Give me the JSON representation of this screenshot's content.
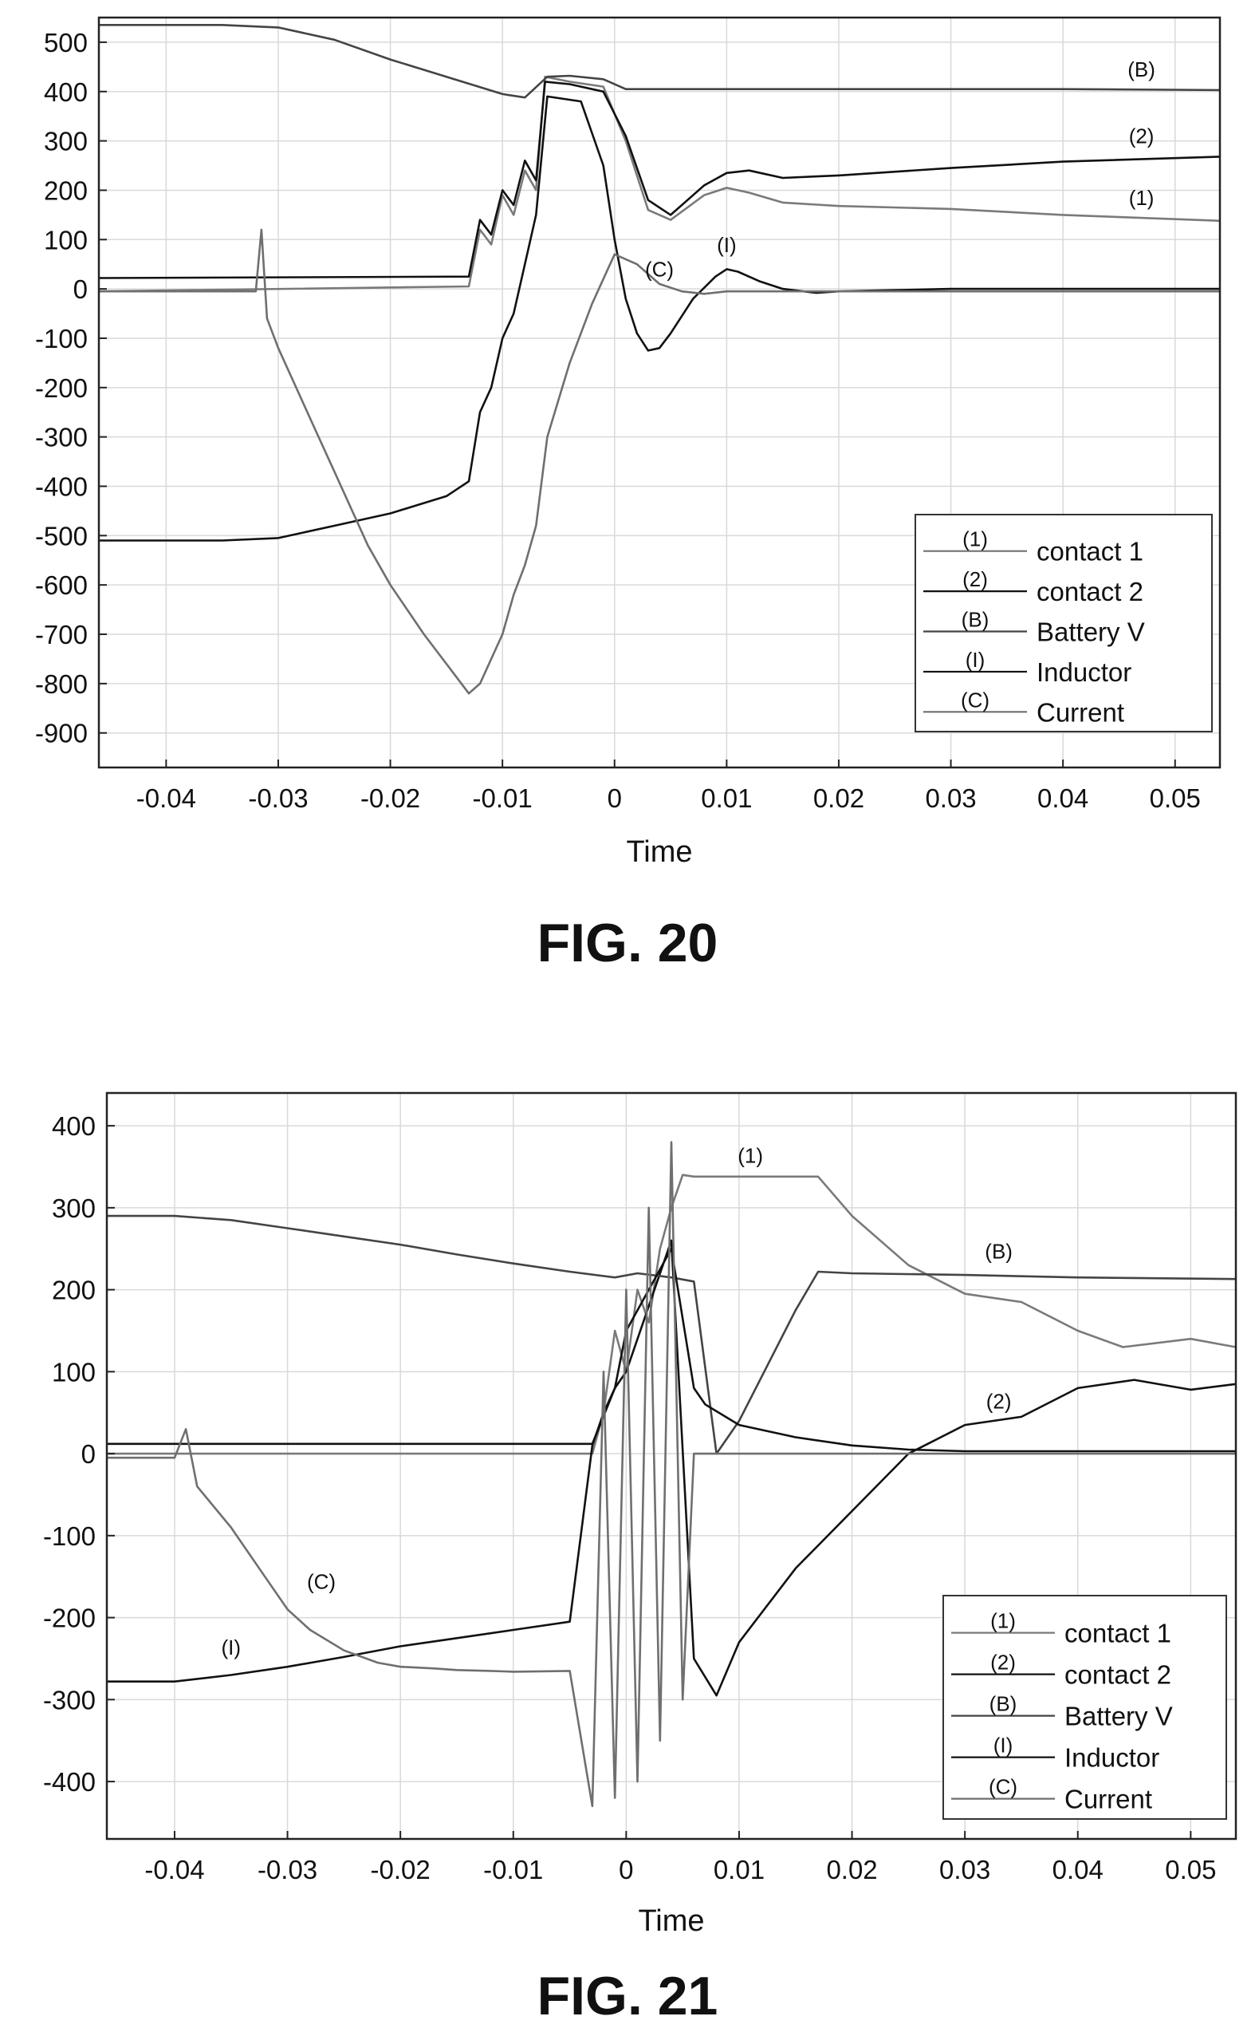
{
  "chart_data": [
    {
      "type": "line",
      "figure_label": "FIG. 20",
      "xlabel": "Time",
      "ylabel": "",
      "xlim": [
        -0.046,
        0.054
      ],
      "ylim": [
        -970,
        550
      ],
      "xticks": [
        -0.04,
        -0.03,
        -0.02,
        -0.01,
        0,
        0.01,
        0.02,
        0.03,
        0.04,
        0.05
      ],
      "xtick_labels": [
        "-0.04",
        "-0.03",
        "-0.02",
        "-0.01",
        "0",
        "0.01",
        "0.02",
        "0.03",
        "0.04",
        "0.05"
      ],
      "yticks": [
        500,
        400,
        300,
        200,
        100,
        0,
        -100,
        -200,
        -300,
        -400,
        -500,
        -600,
        -700,
        -800,
        -900
      ],
      "ytick_labels": [
        "500",
        "400",
        "300",
        "200",
        "100",
        "0",
        "-100",
        "-200",
        "-300",
        "-400",
        "-500",
        "-600",
        "-700",
        "-800",
        "-900"
      ],
      "grid": true,
      "legend_position": "bottom-right",
      "series": [
        {
          "code": "(1)",
          "name": "contact  1",
          "color": "#7a7a7a",
          "x": [
            -0.046,
            -0.013,
            -0.012,
            -0.011,
            -0.01,
            -0.009,
            -0.008,
            -0.007,
            -0.0062,
            -0.004,
            -0.001,
            0.001,
            0.003,
            0.005,
            0.008,
            0.01,
            0.012,
            0.015,
            0.02,
            0.03,
            0.04,
            0.054
          ],
          "y": [
            -5,
            5,
            120,
            90,
            190,
            150,
            240,
            200,
            430,
            420,
            410,
            300,
            160,
            140,
            190,
            205,
            195,
            175,
            168,
            162,
            150,
            138
          ]
        },
        {
          "code": "(2)",
          "name": "contact  2",
          "color": "#111111",
          "x": [
            -0.046,
            -0.013,
            -0.012,
            -0.011,
            -0.01,
            -0.009,
            -0.008,
            -0.007,
            -0.0062,
            -0.004,
            -0.001,
            0.001,
            0.003,
            0.005,
            0.008,
            0.01,
            0.012,
            0.015,
            0.02,
            0.03,
            0.04,
            0.054
          ],
          "y": [
            22,
            25,
            140,
            110,
            200,
            170,
            260,
            220,
            420,
            415,
            400,
            310,
            180,
            150,
            210,
            235,
            240,
            225,
            230,
            245,
            258,
            268
          ]
        },
        {
          "code": "(B)",
          "name": "Battery  V",
          "color": "#444444",
          "x": [
            -0.046,
            -0.035,
            -0.03,
            -0.025,
            -0.02,
            -0.015,
            -0.01,
            -0.008,
            -0.006,
            -0.004,
            -0.001,
            0.001,
            0.005,
            0.01,
            0.02,
            0.03,
            0.04,
            0.054
          ],
          "y": [
            535,
            535,
            530,
            505,
            465,
            430,
            395,
            388,
            430,
            432,
            425,
            405,
            405,
            405,
            405,
            405,
            405,
            403
          ]
        },
        {
          "code": "(I)",
          "name": "Inductor",
          "color": "#111111",
          "x": [
            -0.046,
            -0.035,
            -0.03,
            -0.025,
            -0.02,
            -0.015,
            -0.013,
            -0.012,
            -0.011,
            -0.01,
            -0.009,
            -0.008,
            -0.007,
            -0.006,
            -0.003,
            -0.001,
            0.0,
            0.001,
            0.002,
            0.003,
            0.004,
            0.005,
            0.007,
            0.009,
            0.01,
            0.011,
            0.013,
            0.015,
            0.018,
            0.02,
            0.03,
            0.04,
            0.054
          ],
          "y": [
            -510,
            -510,
            -505,
            -480,
            -455,
            -420,
            -390,
            -250,
            -200,
            -100,
            -50,
            50,
            150,
            390,
            380,
            250,
            100,
            -20,
            -90,
            -125,
            -120,
            -90,
            -20,
            25,
            40,
            35,
            15,
            0,
            -8,
            -5,
            0,
            0,
            0
          ]
        },
        {
          "code": "(C)",
          "name": "Current",
          "color": "#6f6f6f",
          "x": [
            -0.046,
            -0.032,
            -0.0315,
            -0.031,
            -0.03,
            -0.027,
            -0.025,
            -0.022,
            -0.02,
            -0.017,
            -0.015,
            -0.013,
            -0.012,
            -0.011,
            -0.01,
            -0.009,
            -0.008,
            -0.007,
            -0.006,
            -0.004,
            -0.002,
            0.0,
            0.002,
            0.004,
            0.006,
            0.008,
            0.01,
            0.015,
            0.02,
            0.03,
            0.054
          ],
          "y": [
            -5,
            -5,
            120,
            -60,
            -120,
            -270,
            -370,
            -520,
            -600,
            -700,
            -760,
            -820,
            -800,
            -750,
            -700,
            -620,
            -560,
            -480,
            -300,
            -150,
            -30,
            70,
            50,
            10,
            -5,
            -10,
            -5,
            -5,
            -5,
            -5,
            -5
          ]
        }
      ],
      "annotations": [
        {
          "label": "(B)",
          "x": 0.047,
          "y": 430
        },
        {
          "label": "(2)",
          "x": 0.047,
          "y": 295
        },
        {
          "label": "(1)",
          "x": 0.047,
          "y": 170
        },
        {
          "label": "(C)",
          "x": 0.004,
          "y": 25
        },
        {
          "label": "(I)",
          "x": 0.01,
          "y": 75
        }
      ]
    },
    {
      "type": "line",
      "figure_label": "FIG. 21",
      "xlabel": "Time",
      "ylabel": "",
      "xlim": [
        -0.046,
        0.054
      ],
      "ylim": [
        -470,
        440
      ],
      "xticks": [
        -0.04,
        -0.03,
        -0.02,
        -0.01,
        0,
        0.01,
        0.02,
        0.03,
        0.04,
        0.05
      ],
      "xtick_labels": [
        "-0.04",
        "-0.03",
        "-0.02",
        "-0.01",
        "0",
        "0.01",
        "0.02",
        "0.03",
        "0.04",
        "0.05"
      ],
      "yticks": [
        400,
        300,
        200,
        100,
        0,
        -100,
        -200,
        -300,
        -400
      ],
      "ytick_labels": [
        "400",
        "300",
        "200",
        "100",
        "0",
        "-100",
        "-200",
        "-300",
        "-400"
      ],
      "grid": true,
      "legend_position": "bottom-right",
      "series": [
        {
          "code": "(1)",
          "name": "contact  1",
          "color": "#7a7a7a",
          "x": [
            -0.046,
            -0.003,
            -0.002,
            -0.001,
            0.0,
            0.001,
            0.002,
            0.003,
            0.004,
            0.005,
            0.006,
            0.01,
            0.015,
            0.017,
            0.02,
            0.025,
            0.03,
            0.035,
            0.04,
            0.044,
            0.05,
            0.054
          ],
          "y": [
            0,
            0,
            50,
            150,
            100,
            200,
            160,
            250,
            300,
            340,
            338,
            338,
            338,
            338,
            290,
            230,
            195,
            185,
            150,
            130,
            140,
            130
          ]
        },
        {
          "code": "(2)",
          "name": "contact  2",
          "color": "#111111",
          "x": [
            -0.046,
            -0.003,
            -0.001,
            0.0,
            0.002,
            0.004,
            0.006,
            0.008,
            0.01,
            0.015,
            0.02,
            0.025,
            0.03,
            0.035,
            0.04,
            0.045,
            0.05,
            0.054
          ],
          "y": [
            12,
            12,
            80,
            100,
            180,
            260,
            -250,
            -295,
            -230,
            -140,
            -70,
            0,
            35,
            45,
            80,
            90,
            78,
            85
          ]
        },
        {
          "code": "(B)",
          "name": "Battery  V",
          "color": "#444444",
          "x": [
            -0.046,
            -0.04,
            -0.035,
            -0.03,
            -0.025,
            -0.02,
            -0.015,
            -0.01,
            -0.005,
            -0.001,
            0.001,
            0.004,
            0.006,
            0.008,
            0.01,
            0.015,
            0.017,
            0.02,
            0.03,
            0.04,
            0.054
          ],
          "y": [
            290,
            290,
            285,
            275,
            265,
            255,
            243,
            232,
            222,
            215,
            220,
            215,
            210,
            0,
            40,
            175,
            222,
            220,
            218,
            215,
            213
          ]
        },
        {
          "code": "(I)",
          "name": "Inductor",
          "color": "#111111",
          "x": [
            -0.046,
            -0.04,
            -0.035,
            -0.03,
            -0.025,
            -0.02,
            -0.015,
            -0.01,
            -0.005,
            -0.003,
            -0.002,
            -0.001,
            0.0,
            0.002,
            0.004,
            0.006,
            0.007,
            0.01,
            0.015,
            0.02,
            0.025,
            0.03,
            0.04,
            0.054
          ],
          "y": [
            -278,
            -278,
            -270,
            -260,
            -248,
            -235,
            -225,
            -215,
            -205,
            10,
            50,
            80,
            150,
            200,
            250,
            80,
            60,
            35,
            20,
            10,
            5,
            3,
            3,
            3
          ]
        },
        {
          "code": "(C)",
          "name": "Current",
          "color": "#6f6f6f",
          "x": [
            -0.046,
            -0.04,
            -0.039,
            -0.038,
            -0.035,
            -0.032,
            -0.03,
            -0.028,
            -0.025,
            -0.022,
            -0.02,
            -0.017,
            -0.015,
            -0.012,
            -0.01,
            -0.005,
            -0.003,
            -0.002,
            -0.001,
            0.0,
            0.001,
            0.002,
            0.003,
            0.004,
            0.005,
            0.006,
            0.008,
            0.01,
            0.02,
            0.03,
            0.054
          ],
          "y": [
            -5,
            -5,
            30,
            -40,
            -90,
            -150,
            -190,
            -215,
            -240,
            -255,
            -260,
            -262,
            -264,
            -265,
            -266,
            -265,
            -430,
            100,
            -420,
            200,
            -400,
            300,
            -350,
            380,
            -300,
            0,
            0,
            0,
            0,
            0,
            0
          ]
        }
      ],
      "annotations": [
        {
          "label": "(1)",
          "x": 0.011,
          "y": 355
        },
        {
          "label": "(B)",
          "x": 0.033,
          "y": 238
        },
        {
          "label": "(2)",
          "x": 0.033,
          "y": 55
        },
        {
          "label": "(C)",
          "x": -0.027,
          "y": -165
        },
        {
          "label": "(I)",
          "x": -0.035,
          "y": -245
        }
      ]
    }
  ]
}
